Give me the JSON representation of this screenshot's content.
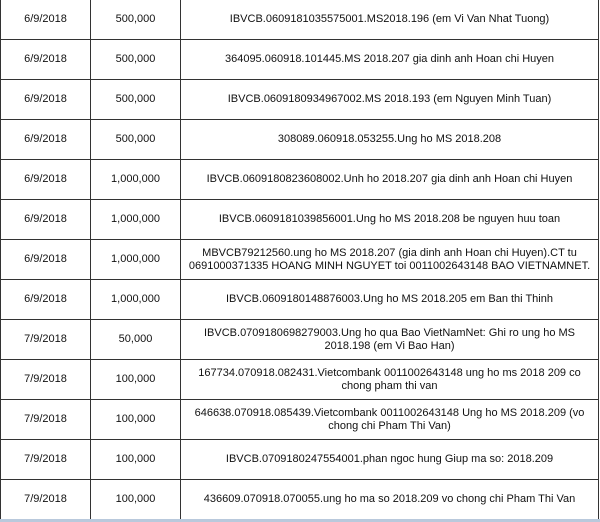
{
  "rows": [
    {
      "date": "6/9/2018",
      "amount": "500,000",
      "description": "IBVCB.0609181035575001.MS2018.196 (em Vi Van Nhat Tuong)"
    },
    {
      "date": "6/9/2018",
      "amount": "500,000",
      "description": "364095.060918.101445.MS 2018.207 gia dinh anh Hoan chi Huyen"
    },
    {
      "date": "6/9/2018",
      "amount": "500,000",
      "description": "IBVCB.0609180934967002.MS 2018.193 (em Nguyen Minh Tuan)"
    },
    {
      "date": "6/9/2018",
      "amount": "500,000",
      "description": "308089.060918.053255.Ung ho MS 2018.208"
    },
    {
      "date": "6/9/2018",
      "amount": "1,000,000",
      "description": "IBVCB.0609180823608002.Unh ho 2018.207 gia dinh anh Hoan chi Huyen"
    },
    {
      "date": "6/9/2018",
      "amount": "1,000,000",
      "description": "IBVCB.0609181039856001.Ung ho MS 2018.208 be nguyen huu toan"
    },
    {
      "date": "6/9/2018",
      "amount": "1,000,000",
      "description": "MBVCB79212560.ung ho MS 2018.207 (gia dinh anh Hoan chi Huyen).CT tu 0691000371335 HOANG MINH NGUYET toi 0011002643148 BAO VIETNAMNET."
    },
    {
      "date": "6/9/2018",
      "amount": "1,000,000",
      "description": "IBVCB.0609180148876003.Ung ho MS 2018.205 em Ban thi Thinh"
    },
    {
      "date": "7/9/2018",
      "amount": "50,000",
      "description": "IBVCB.0709180698279003.Ung ho qua Bao VietNamNet: Ghi ro ung ho MS 2018.198 (em Vi Bao Han)"
    },
    {
      "date": "7/9/2018",
      "amount": "100,000",
      "description": "167734.070918.082431.Vietcombank 0011002643148 ung ho ms 2018 209 co chong pham thi van"
    },
    {
      "date": "7/9/2018",
      "amount": "100,000",
      "description": "646638.070918.085439.Vietcombank 0011002643148 Ung ho MS 2018.209 (vo chong chi Pham Thi Van)"
    },
    {
      "date": "7/9/2018",
      "amount": "100,000",
      "description": "IBVCB.0709180247554001.phan ngoc hung Giup ma so: 2018.209"
    },
    {
      "date": "7/9/2018",
      "amount": "100,000",
      "description": "436609.070918.070055.ung ho ma so 2018.209 vo chong chi Pham Thi Van"
    }
  ]
}
